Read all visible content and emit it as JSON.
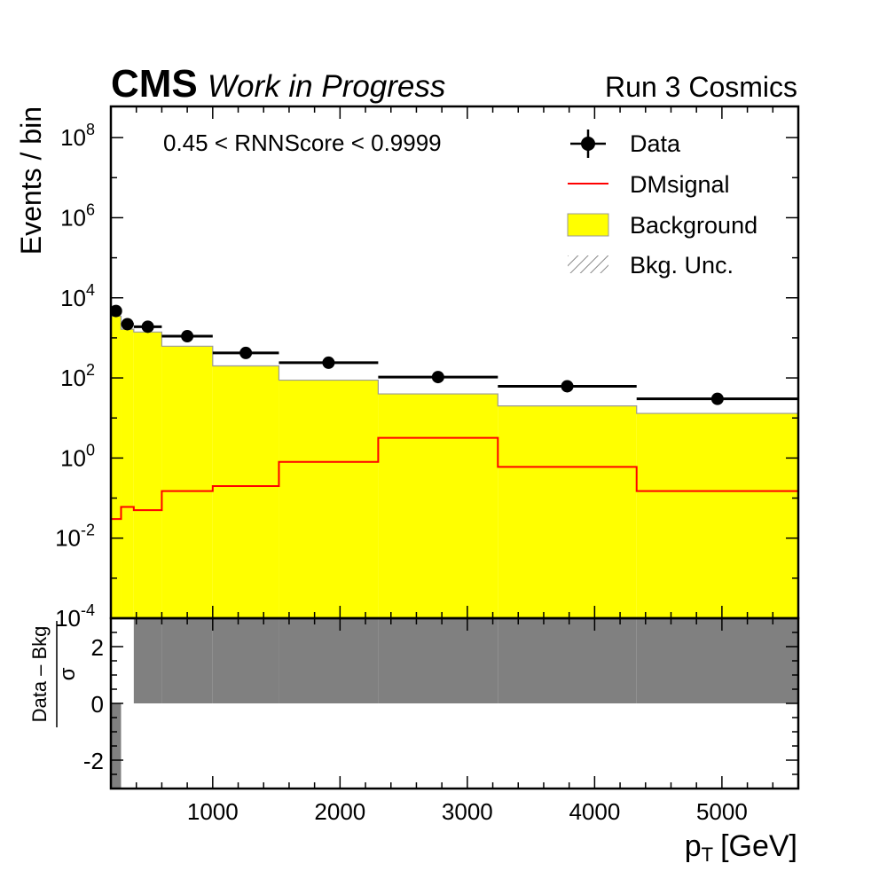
{
  "header": {
    "experiment": "CMS",
    "status": "Work in Progress",
    "run_label": "Run 3 Cosmics"
  },
  "chart_data": {
    "type": "histogram",
    "selection_label": "0.45 < RNNScore < 0.9999",
    "xlabel": "p",
    "xlabel_sub": "T",
    "xlabel_unit": "[GeV]",
    "ylabel": "Events / bin",
    "ratio_ylabel_num": "Data – Bkg",
    "ratio_ylabel_den": "σ",
    "xlim": [
      200,
      5600
    ],
    "ylim": [
      0.0001,
      600000000
    ],
    "yscale": "log",
    "ratio_ylim": [
      -3,
      3
    ],
    "xticks": [
      1000,
      2000,
      3000,
      4000,
      5000
    ],
    "xtick_labels": [
      "1000",
      "2000",
      "3000",
      "4000",
      "5000"
    ],
    "ytick_exponents": [
      -4,
      -2,
      0,
      2,
      4,
      6,
      8
    ],
    "ratio_yticks": [
      -2,
      0,
      2
    ],
    "ratio_ytick_labels": [
      "-2",
      "0",
      "2"
    ],
    "bin_edges": [
      200,
      280,
      380,
      600,
      1000,
      1520,
      2300,
      3240,
      4330,
      5600
    ],
    "legend": {
      "placement": "top-right",
      "entries": [
        "Data",
        "DMsignal",
        "Background",
        "Bkg. Unc."
      ]
    },
    "series": [
      {
        "name": "Data",
        "style": "points",
        "color": "#000000",
        "x": [
          240,
          330,
          490,
          800,
          1260,
          1910,
          2770,
          3785,
          4965
        ],
        "values": [
          4700,
          2200,
          1900,
          1100,
          420,
          240,
          105,
          62,
          30
        ]
      },
      {
        "name": "Background",
        "style": "filled-step",
        "color": "#ffff00",
        "edge_color": "#999999",
        "values": [
          3500,
          1650,
          1400,
          620,
          200,
          88,
          40,
          20,
          13
        ]
      },
      {
        "name": "DMsignal",
        "style": "step",
        "color": "#ff0000",
        "values": [
          0.03,
          0.06,
          0.05,
          0.15,
          0.2,
          0.8,
          3.2,
          0.6,
          0.15
        ]
      }
    ],
    "ratio_values": [
      -3,
      0,
      3,
      3,
      3,
      3,
      3,
      3,
      3
    ],
    "ratio_color": "#808080"
  }
}
